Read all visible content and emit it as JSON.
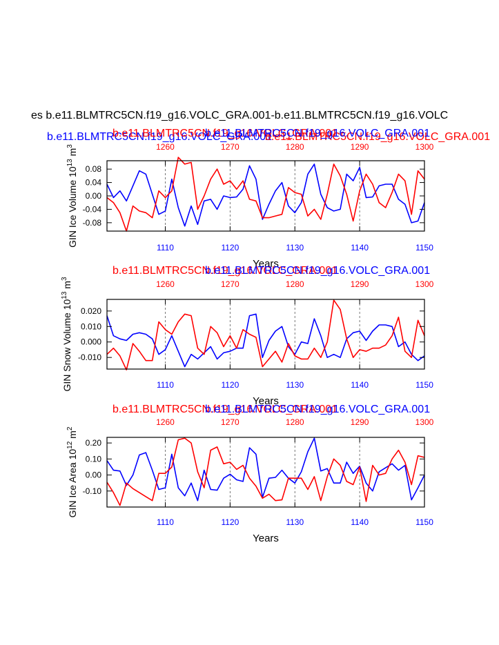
{
  "main_title": "es b.e11.BLMTRC5CN.f19_g16.VOLC_GRA.001-b.e11.BLMTRC5CN.f19_g16.VOLC",
  "top_blue_title": "b.e11.BLMTRC5CN.f19_g16.VOLC_GRA.001",
  "top_red_title": "b.e11.BLMTRC5CN.f19_g16.VOLC_GRA.001",
  "colors": {
    "blue": "#0000ff",
    "red": "#ff0000",
    "black": "#000000"
  },
  "chart_data": [
    {
      "type": "line",
      "id": "ice_volume",
      "ylabel": "GIN Ice Volume 10",
      "ylabel_exp": "13",
      "ylabel_unit": "m",
      "ylabel_unit_exp": "3",
      "xlabel": "Years",
      "red_label": "b.e11.BLMTRC5CN.f19_g16.VOLC_GRA.001",
      "blue_label": "b.e11.BLMTRC5CN.f19_g16.VOLC_GRA.001",
      "ylim": [
        -0.105,
        0.105
      ],
      "yticks": [
        -0.08,
        -0.04,
        0.0,
        0.04,
        0.08
      ],
      "ytick_labels": [
        "-0.08",
        "-0.04",
        "0.00",
        "0.04",
        "0.08"
      ],
      "x_bottom": {
        "range": [
          1101,
          1150
        ],
        "ticks": [
          1110,
          1120,
          1130,
          1140,
          1150
        ],
        "labels": [
          "1110",
          "1120",
          "1130",
          "1140",
          "1150"
        ]
      },
      "x_top": {
        "range": [
          1251,
          1300
        ],
        "ticks": [
          1260,
          1270,
          1280,
          1290,
          1300
        ],
        "labels": [
          "1260",
          "1270",
          "1280",
          "1290",
          "1300"
        ]
      },
      "series": [
        {
          "name": "blue",
          "start": 1101,
          "values": [
            0.035,
            -0.005,
            0.015,
            -0.015,
            0.03,
            0.075,
            0.065,
            0.005,
            -0.055,
            -0.045,
            0.05,
            -0.035,
            -0.09,
            -0.03,
            -0.085,
            -0.015,
            -0.01,
            -0.04,
            0.0,
            -0.005,
            -0.003,
            0.02,
            0.09,
            0.05,
            -0.07,
            -0.025,
            0.015,
            0.04,
            -0.03,
            -0.05,
            -0.02,
            0.065,
            0.095,
            0.005,
            -0.035,
            -0.045,
            -0.04,
            0.065,
            0.045,
            0.085,
            -0.005,
            -0.003,
            0.03,
            0.035,
            0.035,
            -0.01,
            -0.025,
            -0.08,
            -0.075,
            -0.02
          ]
        },
        {
          "name": "red",
          "start": 1251,
          "values": [
            -0.005,
            -0.02,
            -0.05,
            -0.105,
            -0.03,
            -0.045,
            -0.05,
            -0.065,
            0.015,
            -0.005,
            0.015,
            0.115,
            0.095,
            0.1,
            -0.04,
            0.0,
            0.05,
            0.08,
            0.035,
            0.045,
            0.02,
            0.045,
            -0.01,
            -0.015,
            -0.065,
            -0.065,
            -0.06,
            -0.055,
            0.025,
            0.01,
            0.005,
            -0.06,
            -0.04,
            -0.07,
            0.005,
            0.095,
            0.06,
            0.005,
            -0.075,
            0.015,
            0.065,
            0.035,
            -0.02,
            -0.035,
            0.01,
            0.065,
            0.045,
            -0.055,
            0.075,
            0.05
          ]
        }
      ]
    },
    {
      "type": "line",
      "id": "snow_volume",
      "ylabel": "GIN Snow Volume 10",
      "ylabel_exp": "13",
      "ylabel_unit": "m",
      "ylabel_unit_exp": "3",
      "xlabel": "Years",
      "red_label": "b.e11.BLMTRC5CN.f19_g16.VOLC_GRA.001",
      "blue_label": "b.e11.BLMTRC5CN.f19_g16.VOLC_GRA.001",
      "ylim": [
        -0.0175,
        0.0275
      ],
      "yticks": [
        -0.01,
        0.0,
        0.01,
        0.02
      ],
      "ytick_labels": [
        "-0.010",
        "0.000",
        "0.010",
        "0.020"
      ],
      "x_bottom": {
        "range": [
          1101,
          1150
        ],
        "ticks": [
          1110,
          1120,
          1130,
          1140,
          1150
        ],
        "labels": [
          "1110",
          "1120",
          "1130",
          "1140",
          "1150"
        ]
      },
      "x_top": {
        "range": [
          1251,
          1300
        ],
        "ticks": [
          1260,
          1270,
          1280,
          1290,
          1300
        ],
        "labels": [
          "1260",
          "1270",
          "1280",
          "1290",
          "1300"
        ]
      },
      "series": [
        {
          "name": "blue",
          "start": 1101,
          "values": [
            0.017,
            0.004,
            0.002,
            0.001,
            0.005,
            0.006,
            0.005,
            0.002,
            -0.008,
            -0.005,
            0.004,
            -0.006,
            -0.016,
            -0.008,
            -0.011,
            -0.007,
            -0.003,
            -0.011,
            -0.007,
            -0.006,
            -0.004,
            -0.004,
            0.017,
            0.018,
            -0.01,
            0.001,
            0.007,
            0.01,
            -0.003,
            -0.008,
            0.0,
            -0.001,
            0.015,
            0.004,
            -0.01,
            -0.008,
            -0.01,
            0.002,
            0.006,
            0.007,
            0.001,
            0.007,
            0.011,
            0.011,
            0.01,
            -0.003,
            0.0,
            -0.008,
            -0.012,
            -0.009
          ]
        },
        {
          "name": "red",
          "start": 1251,
          "values": [
            -0.008,
            -0.004,
            -0.009,
            -0.018,
            -0.001,
            -0.006,
            -0.012,
            -0.012,
            0.013,
            0.008,
            0.005,
            0.013,
            0.018,
            0.017,
            -0.004,
            -0.008,
            0.01,
            0.006,
            -0.003,
            0.004,
            -0.004,
            0.008,
            0.005,
            0.003,
            -0.016,
            -0.011,
            -0.006,
            -0.013,
            -0.001,
            -0.009,
            -0.011,
            -0.011,
            -0.004,
            -0.01,
            0.0,
            0.027,
            0.021,
            0.002,
            -0.01,
            -0.005,
            -0.006,
            -0.004,
            -0.004,
            -0.002,
            0.004,
            0.016,
            -0.006,
            -0.01,
            0.014,
            0.004
          ]
        }
      ]
    },
    {
      "type": "line",
      "id": "ice_area",
      "ylabel": "GIN Ice Area 10",
      "ylabel_exp": "12",
      "ylabel_unit": "m",
      "ylabel_unit_exp": "2",
      "xlabel": "Years",
      "red_label": "b.e11.BLMTRC5CN.f19_g16.VOLC_GRA.001",
      "blue_label": "b.e11.BLMTRC5CN.f19_g16.VOLC_GRA.001",
      "ylim": [
        -0.2,
        0.235
      ],
      "yticks": [
        -0.1,
        0.0,
        0.1,
        0.2
      ],
      "ytick_labels": [
        "-0.10",
        "0.00",
        "0.10",
        "0.20"
      ],
      "x_bottom": {
        "range": [
          1101,
          1150
        ],
        "ticks": [
          1110,
          1120,
          1130,
          1140,
          1150
        ],
        "labels": [
          "1110",
          "1120",
          "1130",
          "1140",
          "1150"
        ]
      },
      "x_top": {
        "range": [
          1251,
          1300
        ],
        "ticks": [
          1260,
          1270,
          1280,
          1290,
          1300
        ],
        "labels": [
          "1260",
          "1270",
          "1280",
          "1290",
          "1300"
        ]
      },
      "series": [
        {
          "name": "blue",
          "start": 1101,
          "values": [
            0.09,
            0.03,
            0.025,
            -0.065,
            0.0,
            0.125,
            0.14,
            0.03,
            -0.09,
            -0.08,
            0.13,
            -0.08,
            -0.13,
            -0.05,
            -0.16,
            0.03,
            -0.09,
            -0.095,
            -0.02,
            0.005,
            -0.03,
            -0.04,
            0.17,
            0.13,
            -0.14,
            -0.02,
            -0.015,
            0.03,
            -0.02,
            -0.05,
            0.02,
            0.145,
            0.23,
            0.025,
            0.04,
            -0.05,
            -0.05,
            0.08,
            0.01,
            0.055,
            -0.05,
            -0.1,
            0.02,
            0.045,
            0.07,
            0.03,
            0.06,
            -0.155,
            -0.08,
            0.0
          ]
        },
        {
          "name": "red",
          "start": 1251,
          "values": [
            -0.045,
            -0.11,
            -0.19,
            -0.05,
            -0.085,
            -0.11,
            -0.135,
            -0.16,
            0.01,
            0.01,
            0.05,
            0.22,
            0.23,
            0.2,
            0.02,
            -0.08,
            0.155,
            0.175,
            0.07,
            0.08,
            0.035,
            0.06,
            -0.02,
            -0.07,
            -0.145,
            -0.12,
            -0.16,
            -0.155,
            -0.02,
            -0.02,
            -0.02,
            -0.09,
            -0.01,
            -0.16,
            -0.01,
            0.1,
            0.06,
            -0.04,
            -0.06,
            0.05,
            -0.165,
            0.06,
            0.0,
            0.01,
            0.1,
            0.155,
            0.08,
            -0.06,
            0.12,
            0.11
          ]
        }
      ]
    }
  ]
}
